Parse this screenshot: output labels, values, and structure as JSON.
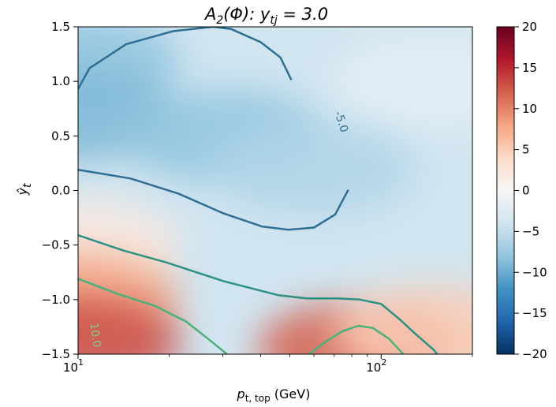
{
  "chart_data": {
    "type": "heatmap",
    "title": "A₂(Φ):  yₜⱼ = 3.0",
    "title_parts": {
      "main": "A",
      "sub1": "2",
      "mid": "(Φ):  y",
      "sub2": "tj",
      "end": " = 3.0"
    },
    "xlabel": "p",
    "xlabel_sub": "t, top",
    "xlabel_unit": " (GeV)",
    "ylabel": "ŷ",
    "ylabel_sub": "t",
    "x_scale": "log",
    "xlim": [
      10,
      200
    ],
    "ylim": [
      -1.5,
      1.5
    ],
    "x_ticks": [
      {
        "value": 10,
        "base": "10",
        "exp": "1"
      },
      {
        "value": 100,
        "base": "10",
        "exp": "2"
      }
    ],
    "y_ticks": [
      {
        "value": 1.5,
        "label": "1.5"
      },
      {
        "value": 1.0,
        "label": "1.0"
      },
      {
        "value": 0.5,
        "label": "0.5"
      },
      {
        "value": 0.0,
        "label": "0.0"
      },
      {
        "value": -0.5,
        "label": "−0.5"
      },
      {
        "value": -1.0,
        "label": "−1.0"
      },
      {
        "value": -1.5,
        "label": "−1.5"
      }
    ],
    "colorbar": {
      "colormap": "RdBu_r",
      "range": [
        -20,
        20
      ],
      "ticks": [
        {
          "value": 20,
          "label": "20"
        },
        {
          "value": 15,
          "label": "15"
        },
        {
          "value": 10,
          "label": "10"
        },
        {
          "value": 5,
          "label": "5"
        },
        {
          "value": 0,
          "label": "0"
        },
        {
          "value": -5,
          "label": "−5"
        },
        {
          "value": -10,
          "label": "−10"
        },
        {
          "value": -15,
          "label": "−15"
        },
        {
          "value": -20,
          "label": "−20"
        }
      ]
    },
    "field_samples": [
      {
        "x": 10,
        "y": 1.2,
        "z": -8
      },
      {
        "x": 10,
        "y": 0.7,
        "z": -9
      },
      {
        "x": 30,
        "y": 0.5,
        "z": -8
      },
      {
        "x": 60,
        "y": 0.2,
        "z": -6
      },
      {
        "x": 150,
        "y": 1.0,
        "z": -2
      },
      {
        "x": 10,
        "y": -0.5,
        "z": 2
      },
      {
        "x": 10,
        "y": -1.0,
        "z": 8
      },
      {
        "x": 10,
        "y": -1.4,
        "z": 13
      },
      {
        "x": 85,
        "y": -1.45,
        "z": 12
      },
      {
        "x": 150,
        "y": -1.3,
        "z": 5
      }
    ],
    "contours": [
      {
        "level": -5.0,
        "color": "#2f6f94",
        "label": "-5.0",
        "points": [
          [
            10,
            0.93
          ],
          [
            10.9,
            1.12
          ],
          [
            14.4,
            1.34
          ],
          [
            20.6,
            1.46
          ],
          [
            27.9,
            1.5
          ],
          [
            32,
            1.48
          ],
          [
            40,
            1.36
          ],
          [
            46.5,
            1.22
          ],
          [
            50.4,
            1.02
          ]
        ]
      },
      {
        "level": -5.0,
        "color": "#2f6f94",
        "label": "",
        "points": [
          [
            10,
            0.19
          ],
          [
            14.9,
            0.11
          ],
          [
            21.5,
            -0.03
          ],
          [
            30.2,
            -0.21
          ],
          [
            40.4,
            -0.33
          ],
          [
            49.5,
            -0.36
          ],
          [
            60,
            -0.34
          ],
          [
            70.5,
            -0.22
          ],
          [
            77.7,
            0.0
          ]
        ]
      },
      {
        "level": 5.0,
        "color": "#2b9283",
        "label": "",
        "points": [
          [
            10,
            -0.41
          ],
          [
            14.1,
            -0.55
          ],
          [
            19.6,
            -0.66
          ],
          [
            30.1,
            -0.83
          ],
          [
            45.8,
            -0.96
          ],
          [
            57,
            -0.99
          ],
          [
            72.1,
            -0.99
          ],
          [
            85.1,
            -1.0
          ],
          [
            100,
            -1.04
          ],
          [
            115,
            -1.18
          ],
          [
            129.2,
            -1.31
          ],
          [
            149,
            -1.46
          ],
          [
            153,
            -1.5
          ]
        ]
      },
      {
        "level": 10.0,
        "color": "#48b278",
        "label": "10.0",
        "points": [
          [
            10,
            -0.81
          ],
          [
            13.6,
            -0.95
          ],
          [
            18,
            -1.06
          ],
          [
            22.7,
            -1.2
          ],
          [
            26.6,
            -1.35
          ],
          [
            31,
            -1.5
          ]
        ]
      },
      {
        "level": 10.0,
        "color": "#48b278",
        "label": "",
        "points": [
          [
            57.7,
            -1.5
          ],
          [
            66,
            -1.38
          ],
          [
            74.4,
            -1.29
          ],
          [
            84.1,
            -1.24
          ],
          [
            93.9,
            -1.26
          ],
          [
            106.2,
            -1.36
          ],
          [
            118.3,
            -1.5
          ]
        ]
      }
    ]
  }
}
